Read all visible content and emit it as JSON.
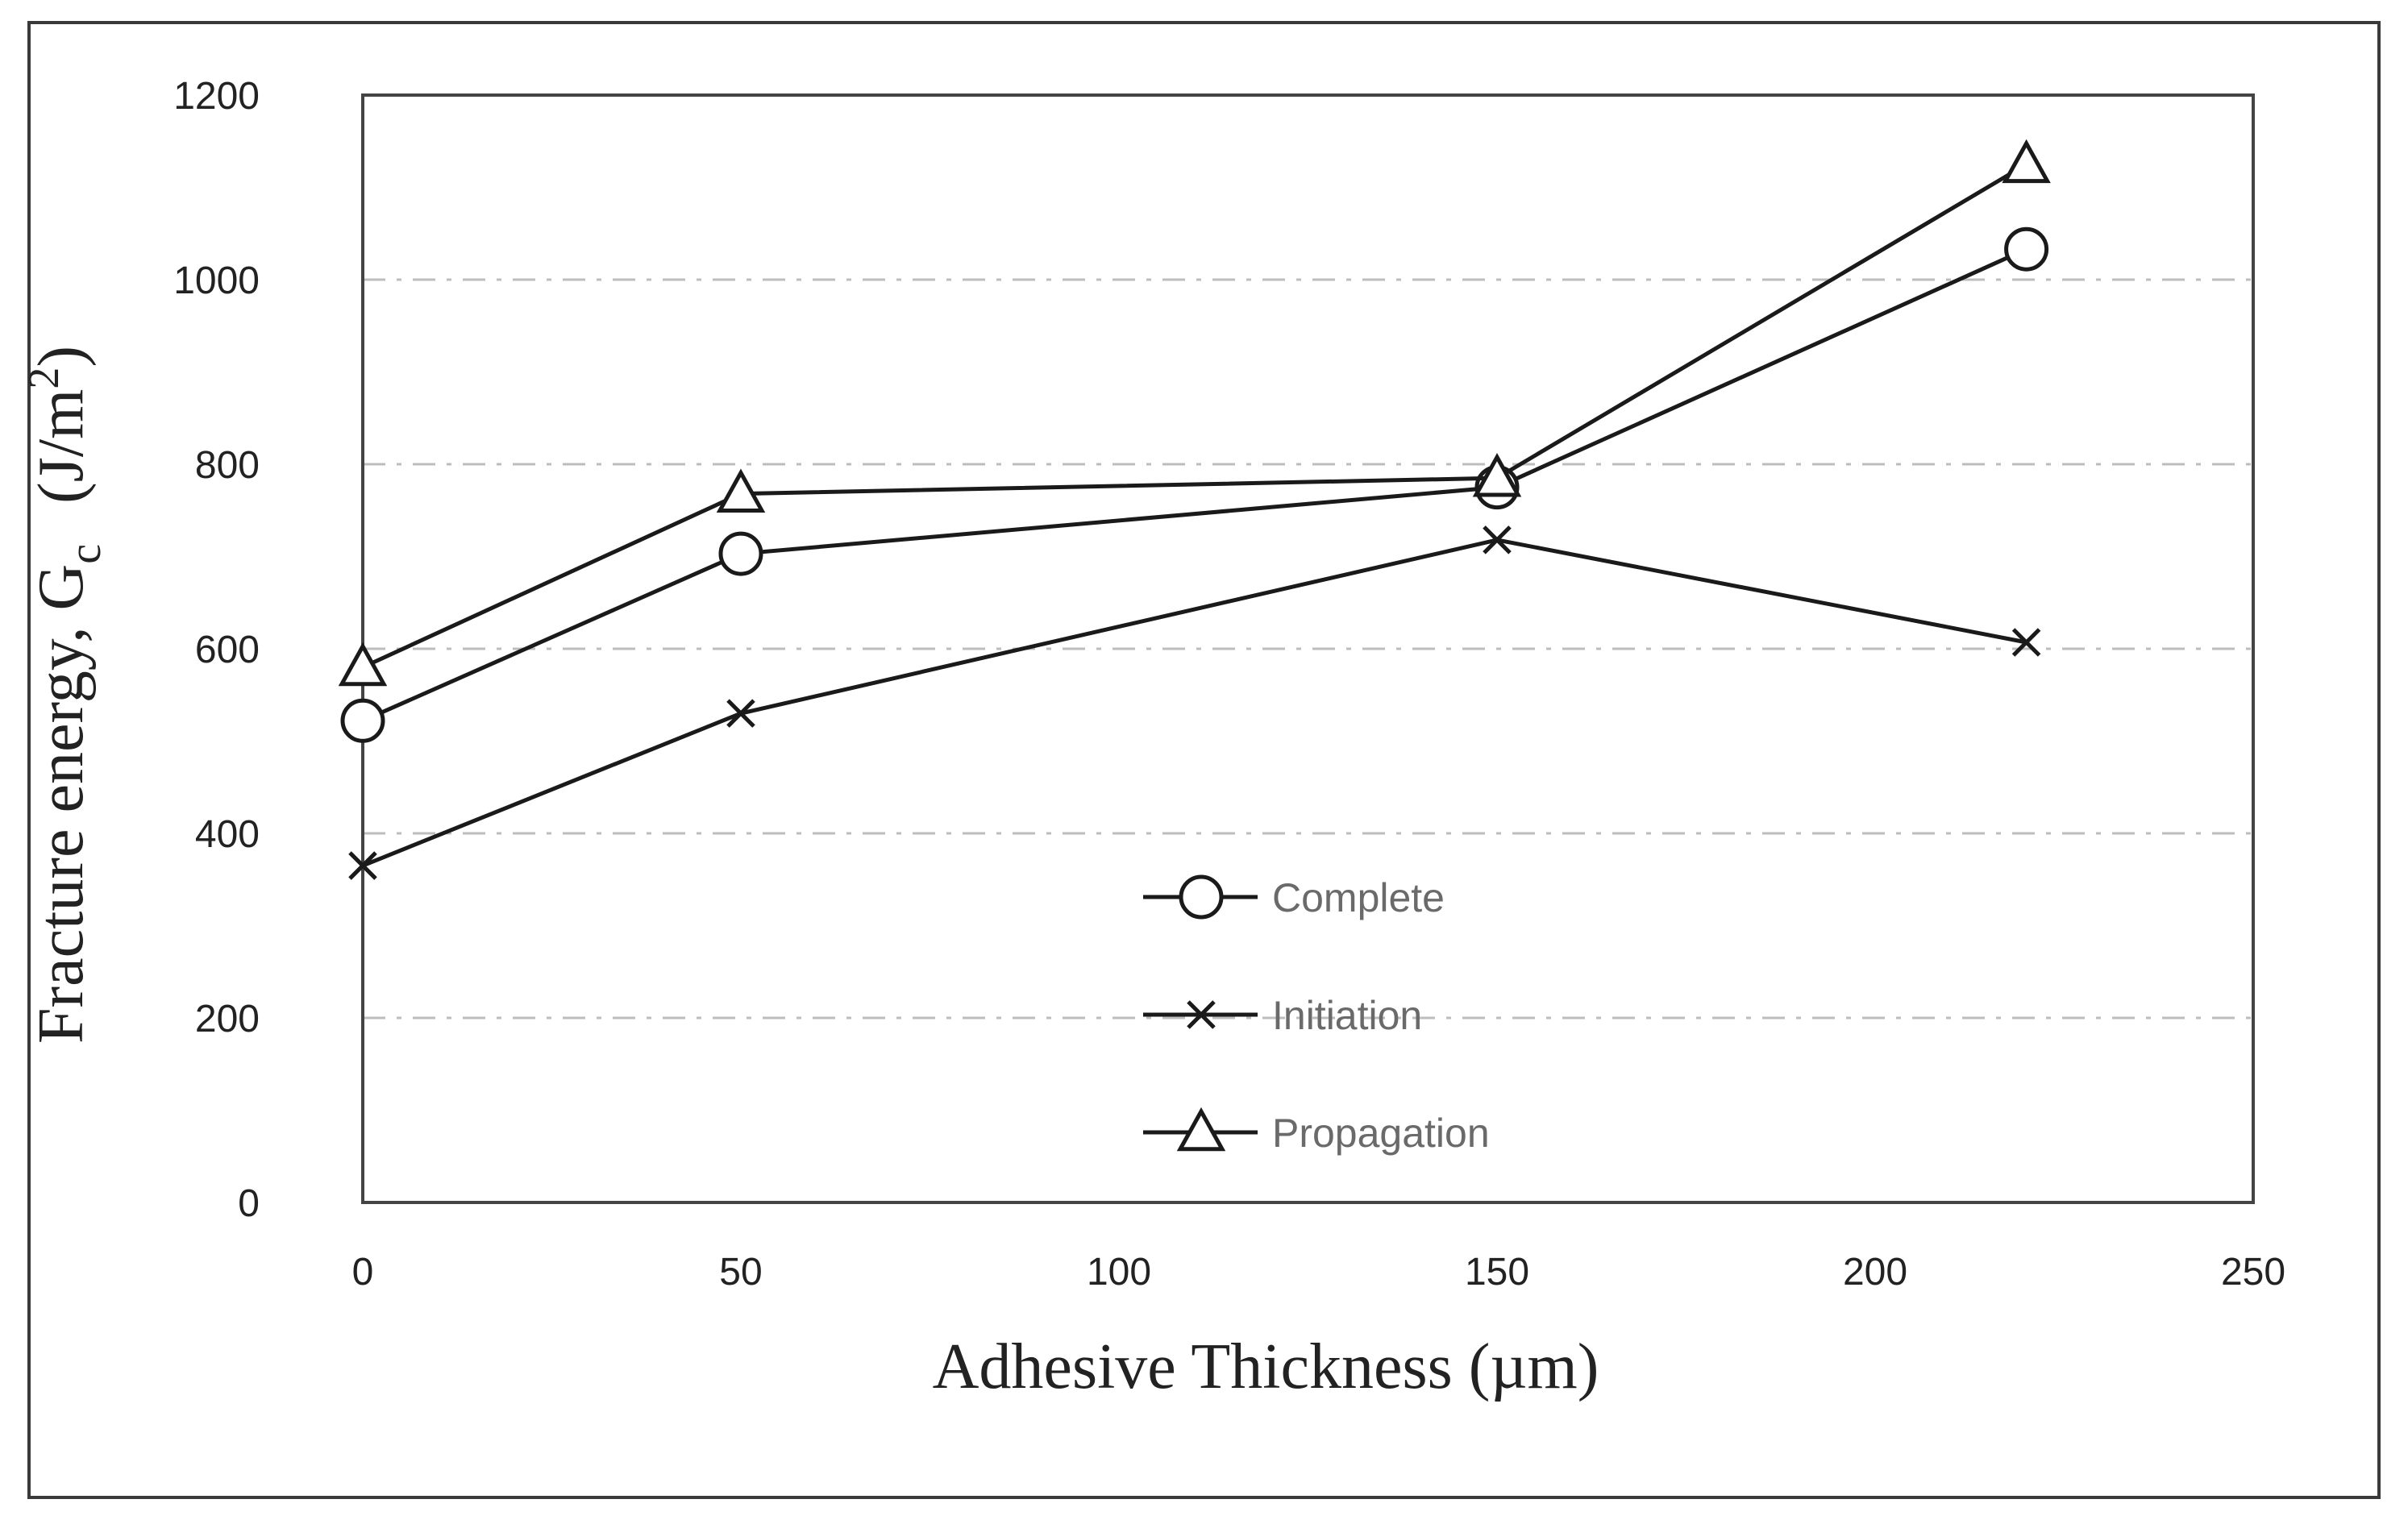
{
  "chart_data": {
    "type": "line",
    "title": "",
    "xlabel": "Adhesive Thickness (µm)",
    "ylabel_main": "Fracture energy, G",
    "ylabel_sub": "c",
    "ylabel_units_prefix": "(J/m",
    "ylabel_units_sup": "2",
    "ylabel_units_suffix": ")",
    "xlim": [
      0,
      250
    ],
    "ylim": [
      0,
      1200
    ],
    "xticks": [
      "0",
      "50",
      "100",
      "150",
      "200",
      "250"
    ],
    "xtick_values": [
      0,
      50,
      100,
      150,
      200,
      250
    ],
    "yticks": [
      "0",
      "200",
      "400",
      "600",
      "800",
      "1000",
      "1200"
    ],
    "ytick_values": [
      0,
      200,
      400,
      600,
      800,
      1000,
      1200
    ],
    "grid": "horizontal",
    "legend_position": "center-bottom",
    "x": [
      0,
      50,
      150,
      220
    ],
    "series": [
      {
        "name": "Complete",
        "marker": "circle",
        "values": [
          522,
          703,
          775,
          1033
        ]
      },
      {
        "name": "Initiation",
        "marker": "x",
        "values": [
          365,
          530,
          718,
          607
        ]
      },
      {
        "name": "Propagation",
        "marker": "triangle",
        "values": [
          580,
          768,
          785,
          1125
        ]
      }
    ]
  }
}
